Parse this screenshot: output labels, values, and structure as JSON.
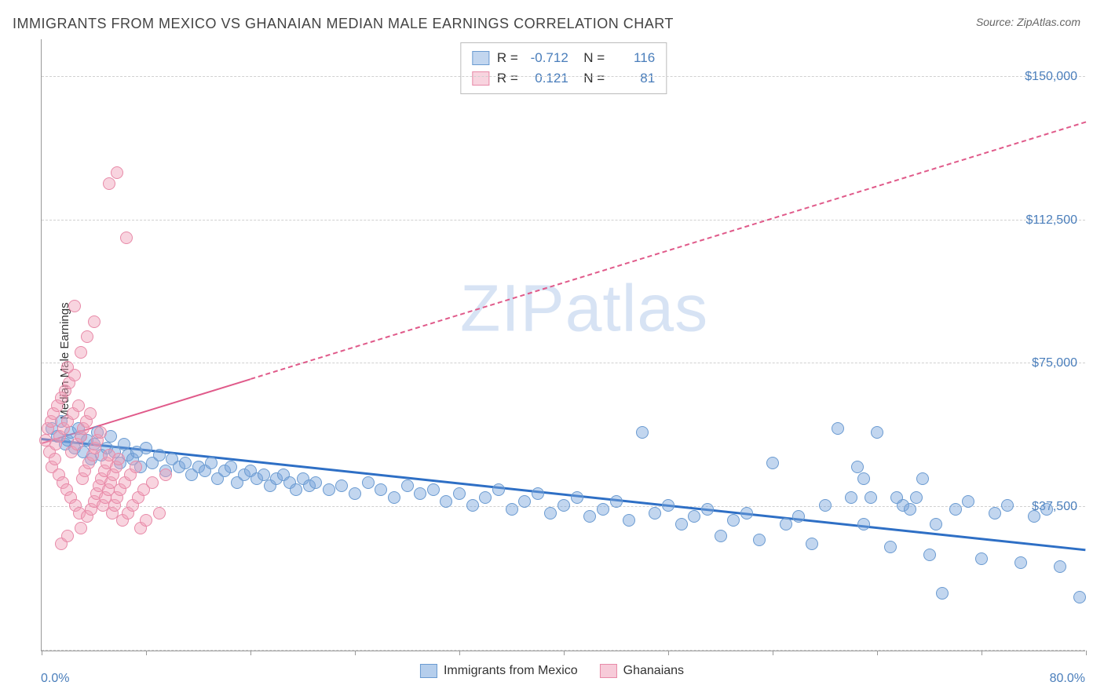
{
  "title": "IMMIGRANTS FROM MEXICO VS GHANAIAN MEDIAN MALE EARNINGS CORRELATION CHART",
  "source_label": "Source: ZipAtlas.com",
  "ylabel": "Median Male Earnings",
  "watermark": {
    "bold": "ZIP",
    "light": "atlas"
  },
  "chart": {
    "type": "scatter",
    "background_color": "#ffffff",
    "grid_color": "#d0d0d0",
    "axis_color": "#999999",
    "x": {
      "min": 0,
      "max": 80,
      "unit": "%",
      "min_label": "0.0%",
      "max_label": "80.0%",
      "ticks": [
        0,
        8,
        16,
        24,
        32,
        40,
        48,
        56,
        64,
        72,
        80
      ]
    },
    "y": {
      "min": 0,
      "max": 160000,
      "gridlines": [
        0,
        37500,
        75000,
        112500,
        150000
      ],
      "tick_labels": {
        "37500": "$37,500",
        "75000": "$75,000",
        "112500": "$112,500",
        "150000": "$150,000"
      },
      "label_color": "#4a7ebb",
      "label_fontsize": 16
    },
    "marker_radius": 8,
    "series": [
      {
        "name": "Immigrants from Mexico",
        "color_fill": "rgba(120,165,220,0.45)",
        "color_stroke": "#6b9bd1",
        "trend": {
          "color": "#2e6fc5",
          "width": 3,
          "dash": "solid",
          "y_at_xmin": 55000,
          "y_at_xmax": 26000
        },
        "R": "-0.712",
        "N": "116",
        "points": [
          [
            0.8,
            58000
          ],
          [
            1.2,
            56000
          ],
          [
            1.5,
            60000
          ],
          [
            1.8,
            54000
          ],
          [
            2.0,
            55000
          ],
          [
            2.2,
            57000
          ],
          [
            2.5,
            53000
          ],
          [
            2.8,
            58000
          ],
          [
            3.0,
            56000
          ],
          [
            3.2,
            52000
          ],
          [
            3.5,
            55000
          ],
          [
            3.8,
            50000
          ],
          [
            4.0,
            54000
          ],
          [
            4.3,
            57000
          ],
          [
            4.6,
            51000
          ],
          [
            5.0,
            53000
          ],
          [
            5.3,
            56000
          ],
          [
            5.6,
            52000
          ],
          [
            6.0,
            49000
          ],
          [
            6.3,
            54000
          ],
          [
            6.6,
            51000
          ],
          [
            7.0,
            50000
          ],
          [
            7.3,
            52000
          ],
          [
            7.6,
            48000
          ],
          [
            8.0,
            53000
          ],
          [
            8.5,
            49000
          ],
          [
            9.0,
            51000
          ],
          [
            9.5,
            47000
          ],
          [
            10.0,
            50000
          ],
          [
            10.5,
            48000
          ],
          [
            11.0,
            49000
          ],
          [
            11.5,
            46000
          ],
          [
            12.0,
            48000
          ],
          [
            12.5,
            47000
          ],
          [
            13.0,
            49000
          ],
          [
            13.5,
            45000
          ],
          [
            14.0,
            47000
          ],
          [
            14.5,
            48000
          ],
          [
            15.0,
            44000
          ],
          [
            15.5,
            46000
          ],
          [
            16.0,
            47000
          ],
          [
            16.5,
            45000
          ],
          [
            17.0,
            46000
          ],
          [
            17.5,
            43000
          ],
          [
            18.0,
            45000
          ],
          [
            18.5,
            46000
          ],
          [
            19.0,
            44000
          ],
          [
            19.5,
            42000
          ],
          [
            20.0,
            45000
          ],
          [
            20.5,
            43000
          ],
          [
            21.0,
            44000
          ],
          [
            22.0,
            42000
          ],
          [
            23.0,
            43000
          ],
          [
            24.0,
            41000
          ],
          [
            25.0,
            44000
          ],
          [
            26.0,
            42000
          ],
          [
            27.0,
            40000
          ],
          [
            28.0,
            43000
          ],
          [
            29.0,
            41000
          ],
          [
            30.0,
            42000
          ],
          [
            31.0,
            39000
          ],
          [
            32.0,
            41000
          ],
          [
            33.0,
            38000
          ],
          [
            34.0,
            40000
          ],
          [
            35.0,
            42000
          ],
          [
            36.0,
            37000
          ],
          [
            37.0,
            39000
          ],
          [
            38.0,
            41000
          ],
          [
            39.0,
            36000
          ],
          [
            40.0,
            38000
          ],
          [
            41.0,
            40000
          ],
          [
            42.0,
            35000
          ],
          [
            43.0,
            37000
          ],
          [
            44.0,
            39000
          ],
          [
            45.0,
            34000
          ],
          [
            46.0,
            57000
          ],
          [
            47.0,
            36000
          ],
          [
            48.0,
            38000
          ],
          [
            49.0,
            33000
          ],
          [
            50.0,
            35000
          ],
          [
            51.0,
            37000
          ],
          [
            52.0,
            30000
          ],
          [
            53.0,
            34000
          ],
          [
            54.0,
            36000
          ],
          [
            55.0,
            29000
          ],
          [
            56.0,
            49000
          ],
          [
            57.0,
            33000
          ],
          [
            58.0,
            35000
          ],
          [
            59.0,
            28000
          ],
          [
            60.0,
            38000
          ],
          [
            61.0,
            58000
          ],
          [
            62.0,
            40000
          ],
          [
            63.0,
            33000
          ],
          [
            63.5,
            40000
          ],
          [
            64.0,
            57000
          ],
          [
            65.0,
            27000
          ],
          [
            66.0,
            38000
          ],
          [
            67.0,
            40000
          ],
          [
            68.0,
            25000
          ],
          [
            68.5,
            33000
          ],
          [
            69.0,
            15000
          ],
          [
            70.0,
            37000
          ],
          [
            71.0,
            39000
          ],
          [
            72.0,
            24000
          ],
          [
            73.0,
            36000
          ],
          [
            74.0,
            38000
          ],
          [
            75.0,
            23000
          ],
          [
            76.0,
            35000
          ],
          [
            77.0,
            37000
          ],
          [
            78.0,
            22000
          ],
          [
            62.5,
            48000
          ],
          [
            63.0,
            45000
          ],
          [
            65.5,
            40000
          ],
          [
            66.5,
            37000
          ],
          [
            67.5,
            45000
          ],
          [
            79.5,
            14000
          ]
        ]
      },
      {
        "name": "Ghanaians",
        "color_fill": "rgba(240,160,185,0.45)",
        "color_stroke": "#e88aa8",
        "trend": {
          "color": "#e05a8a",
          "width": 2,
          "dash": "dashed",
          "solid_until_x": 16,
          "y_at_xmin": 54000,
          "y_at_xmax": 138000
        },
        "R": "0.121",
        "N": "81",
        "points": [
          [
            0.3,
            55000
          ],
          [
            0.5,
            58000
          ],
          [
            0.6,
            52000
          ],
          [
            0.7,
            60000
          ],
          [
            0.8,
            48000
          ],
          [
            0.9,
            62000
          ],
          [
            1.0,
            50000
          ],
          [
            1.1,
            54000
          ],
          [
            1.2,
            64000
          ],
          [
            1.3,
            46000
          ],
          [
            1.4,
            56000
          ],
          [
            1.5,
            66000
          ],
          [
            1.6,
            44000
          ],
          [
            1.7,
            58000
          ],
          [
            1.8,
            68000
          ],
          [
            1.9,
            42000
          ],
          [
            2.0,
            60000
          ],
          [
            2.1,
            70000
          ],
          [
            2.2,
            40000
          ],
          [
            2.3,
            52000
          ],
          [
            2.4,
            62000
          ],
          [
            2.5,
            72000
          ],
          [
            2.6,
            38000
          ],
          [
            2.7,
            54000
          ],
          [
            2.8,
            64000
          ],
          [
            2.9,
            36000
          ],
          [
            3.0,
            56000
          ],
          [
            3.1,
            45000
          ],
          [
            3.2,
            58000
          ],
          [
            3.3,
            47000
          ],
          [
            3.4,
            60000
          ],
          [
            3.5,
            35000
          ],
          [
            3.6,
            49000
          ],
          [
            3.7,
            62000
          ],
          [
            3.8,
            37000
          ],
          [
            3.9,
            51000
          ],
          [
            4.0,
            39000
          ],
          [
            4.1,
            53000
          ],
          [
            4.2,
            41000
          ],
          [
            4.3,
            55000
          ],
          [
            4.4,
            43000
          ],
          [
            4.5,
            57000
          ],
          [
            4.6,
            45000
          ],
          [
            4.7,
            38000
          ],
          [
            4.8,
            47000
          ],
          [
            4.9,
            40000
          ],
          [
            5.0,
            49000
          ],
          [
            5.1,
            42000
          ],
          [
            5.2,
            51000
          ],
          [
            5.3,
            44000
          ],
          [
            5.4,
            36000
          ],
          [
            5.5,
            46000
          ],
          [
            5.6,
            38000
          ],
          [
            5.7,
            48000
          ],
          [
            5.8,
            40000
          ],
          [
            5.9,
            50000
          ],
          [
            6.0,
            42000
          ],
          [
            6.2,
            34000
          ],
          [
            6.4,
            44000
          ],
          [
            6.6,
            36000
          ],
          [
            6.8,
            46000
          ],
          [
            7.0,
            38000
          ],
          [
            7.2,
            48000
          ],
          [
            7.4,
            40000
          ],
          [
            7.6,
            32000
          ],
          [
            7.8,
            42000
          ],
          [
            8.0,
            34000
          ],
          [
            8.5,
            44000
          ],
          [
            9.0,
            36000
          ],
          [
            9.5,
            46000
          ],
          [
            3.0,
            78000
          ],
          [
            3.5,
            82000
          ],
          [
            4.0,
            86000
          ],
          [
            2.5,
            90000
          ],
          [
            2.0,
            74000
          ],
          [
            5.8,
            125000
          ],
          [
            5.2,
            122000
          ],
          [
            6.5,
            108000
          ],
          [
            1.5,
            28000
          ],
          [
            2.0,
            30000
          ],
          [
            3.0,
            32000
          ]
        ]
      }
    ]
  },
  "legend": {
    "items": [
      {
        "label": "Immigrants from Mexico",
        "fill": "rgba(120,165,220,0.55)",
        "stroke": "#6b9bd1"
      },
      {
        "label": "Ghanaians",
        "fill": "rgba(240,160,185,0.55)",
        "stroke": "#e88aa8"
      }
    ]
  }
}
